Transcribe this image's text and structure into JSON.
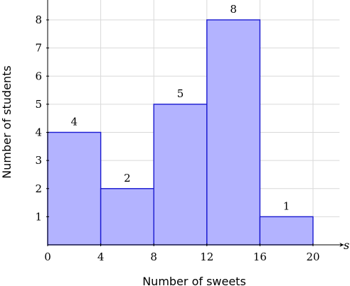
{
  "chart_data": {
    "type": "bar",
    "bins": [
      {
        "from": 0,
        "to": 4,
        "value": 4,
        "highlighted": false
      },
      {
        "from": 4,
        "to": 8,
        "value": 2,
        "highlighted": true
      },
      {
        "from": 8,
        "to": 12,
        "value": 5,
        "highlighted": false
      },
      {
        "from": 12,
        "to": 16,
        "value": 8,
        "highlighted": false
      },
      {
        "from": 16,
        "to": 20,
        "value": 1,
        "highlighted": false
      }
    ],
    "data_labels": [
      "4",
      "2",
      "5",
      "8",
      "1"
    ],
    "xlabel": "Number of sweets",
    "ylabel": "Number of students",
    "x_axis_variable": "s",
    "x_ticks": [
      "0",
      "4",
      "8",
      "12",
      "16",
      "20"
    ],
    "y_ticks": [
      "1",
      "2",
      "3",
      "4",
      "5",
      "6",
      "7",
      "8"
    ],
    "xlim": [
      0,
      22
    ],
    "ylim": [
      0,
      8.8
    ],
    "grid": true,
    "colors": {
      "bar_fill": "#b3b3ff",
      "bar_edge": "#1a1ad0",
      "highlight_fill": "#8fe08f",
      "highlight_hatch": "#2ea02e",
      "grid": "#d9d9d9"
    }
  }
}
